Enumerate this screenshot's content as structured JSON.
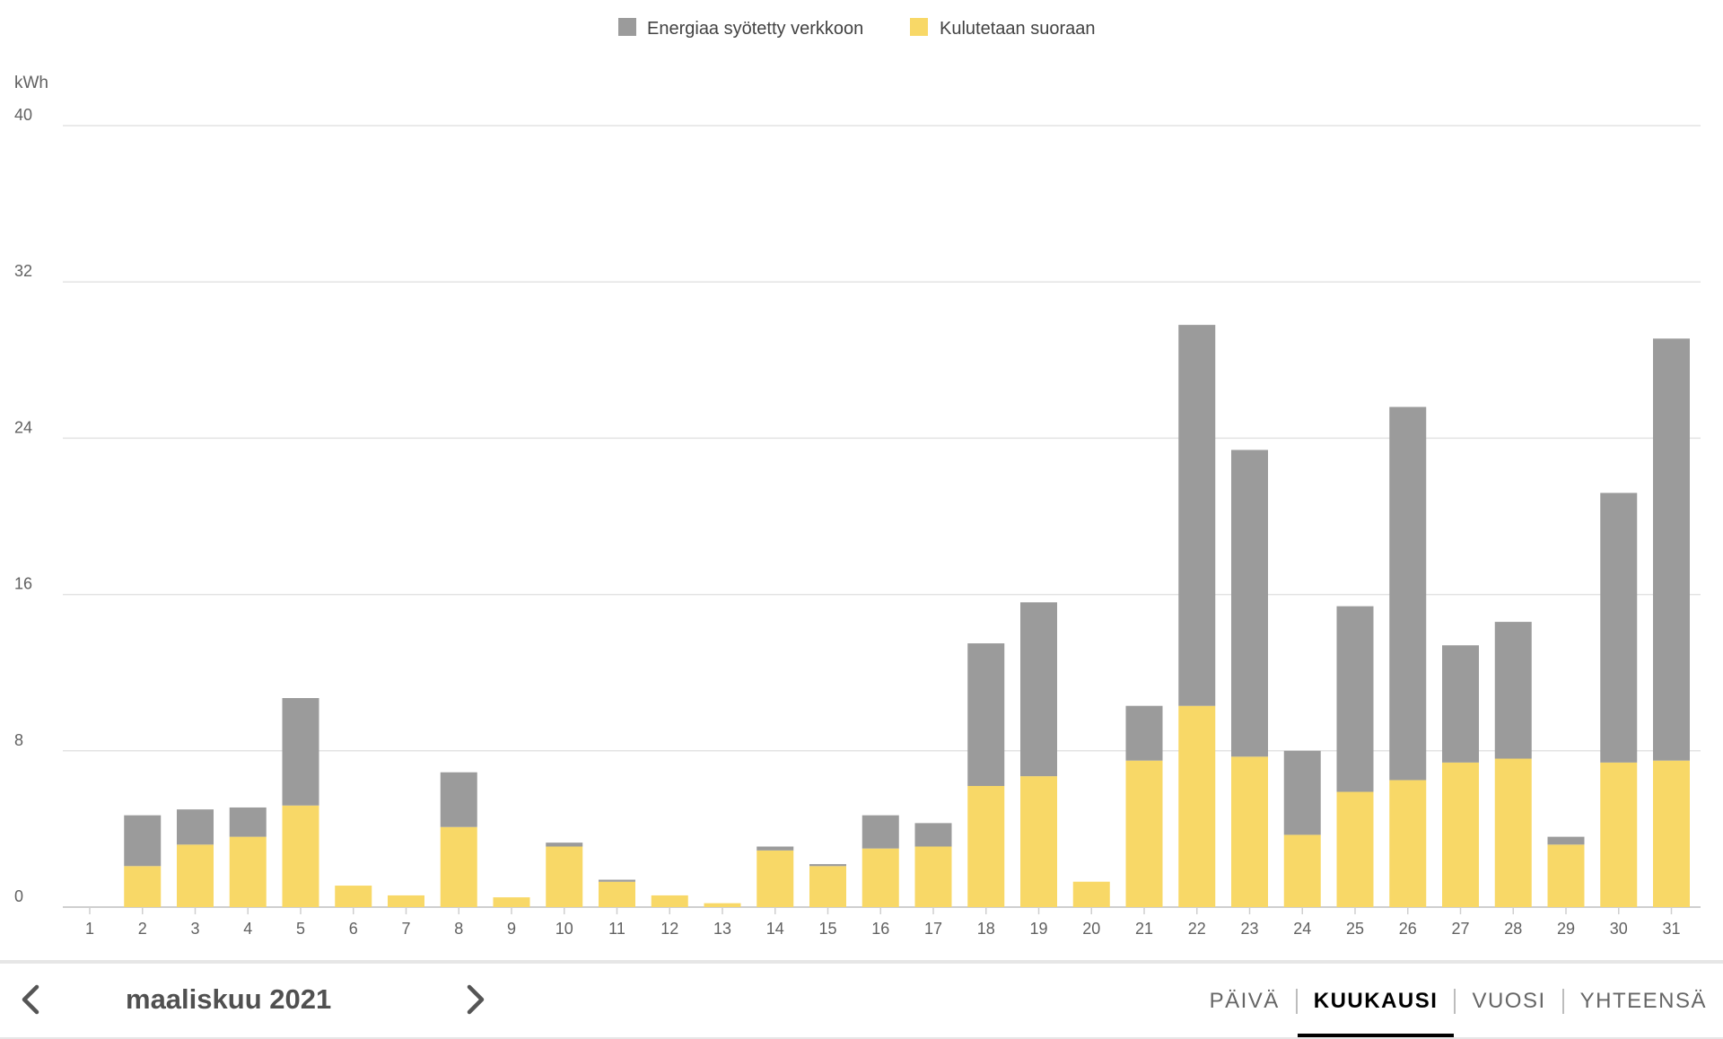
{
  "chart_data": {
    "type": "bar",
    "stacked": true,
    "unit": "kWh",
    "y_ticks": [
      0,
      8,
      16,
      24,
      32,
      40
    ],
    "ylim": [
      0,
      40
    ],
    "grid": true,
    "legend_position": "top-center",
    "categories": [
      "1",
      "2",
      "3",
      "4",
      "5",
      "6",
      "7",
      "8",
      "9",
      "10",
      "11",
      "12",
      "13",
      "14",
      "15",
      "16",
      "17",
      "18",
      "19",
      "20",
      "21",
      "22",
      "23",
      "24",
      "25",
      "26",
      "27",
      "28",
      "29",
      "30",
      "31"
    ],
    "series": [
      {
        "name": "Kulutetaan suoraan",
        "color": "#f8d867",
        "values": [
          0,
          2.1,
          3.2,
          3.6,
          5.2,
          1.1,
          0.6,
          4.1,
          0.5,
          3.1,
          1.3,
          0.6,
          0.2,
          2.9,
          2.1,
          3.0,
          3.1,
          6.2,
          6.7,
          1.3,
          7.5,
          10.3,
          7.7,
          3.7,
          5.9,
          6.5,
          7.4,
          7.6,
          3.2,
          7.4,
          7.5
        ]
      },
      {
        "name": "Energiaa syötetty verkkoon",
        "color": "#9b9b9b",
        "values": [
          0,
          2.6,
          1.8,
          1.5,
          5.5,
          0,
          0,
          2.8,
          0,
          0.2,
          0.1,
          0,
          0,
          0.2,
          0.1,
          1.7,
          1.2,
          7.3,
          8.9,
          0,
          2.8,
          19.5,
          15.7,
          4.3,
          9.5,
          19.1,
          6.0,
          7.0,
          0.4,
          13.8,
          21.6
        ]
      }
    ]
  },
  "footer": {
    "period": "maaliskuu 2021",
    "prev_label": "<",
    "next_label": ">",
    "tabs": [
      {
        "label": "PÄIVÄ",
        "active": false
      },
      {
        "label": "KUUKAUSI",
        "active": true
      },
      {
        "label": "VUOSI",
        "active": false
      },
      {
        "label": "YHTEENSÄ",
        "active": false
      }
    ]
  }
}
